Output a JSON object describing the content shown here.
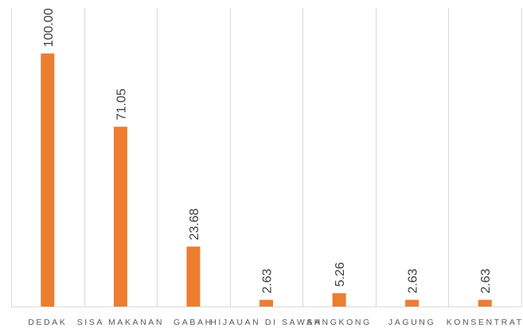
{
  "chart_data": {
    "type": "bar",
    "title": "",
    "xlabel": "",
    "ylabel": "",
    "categories": [
      "DEDAK",
      "SISA MAKANAN",
      "GABAH",
      "HIJAUAN DI SAWAH",
      "SANGKONG",
      "JAGUNG",
      "KONSENTRAT"
    ],
    "values": [
      100.0,
      71.05,
      23.68,
      2.63,
      5.26,
      2.63,
      2.63
    ],
    "value_labels": [
      "100.00",
      "71.05",
      "23.68",
      "2.63",
      "5.26",
      "2.63",
      "2.63"
    ],
    "ylim": [
      0,
      118
    ],
    "grid": "vertical",
    "legend": "none",
    "colors": {
      "bar": "#ed7d31",
      "grid": "#d9d9d9",
      "label": "#404040",
      "category": "#595959"
    }
  }
}
